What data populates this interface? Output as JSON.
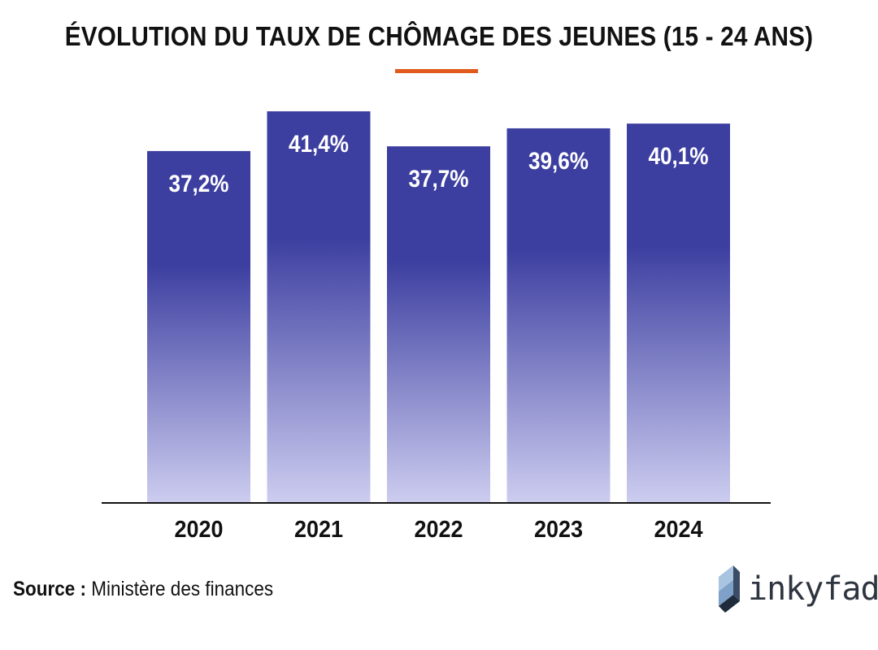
{
  "colors": {
    "bar_top": "#3c3ea0",
    "bar_bottom": "#cdcdf0",
    "accent": "#e05a1e",
    "label": "#ffffff",
    "axis": "#111111"
  },
  "chart_data": {
    "type": "bar",
    "title": "ÉVOLUTION DU TAUX DE CHÔMAGE DES JEUNES (15 - 24 ANS)",
    "categories": [
      "2020",
      "2021",
      "2022",
      "2023",
      "2024"
    ],
    "values": [
      37.2,
      41.4,
      37.7,
      39.6,
      40.1
    ],
    "data_labels": [
      "37,2%",
      "41,4%",
      "37,7%",
      "39,6%",
      "40,1%"
    ],
    "unit": "%",
    "xlabel": "",
    "ylabel": "",
    "ylim": [
      0,
      41.4
    ],
    "grid": false,
    "legend": "none"
  },
  "source": {
    "label": "Source :",
    "text": "Ministère des finances"
  },
  "logo": {
    "text": "inkyfada",
    "icon": "inkyfada-logo-icon"
  }
}
